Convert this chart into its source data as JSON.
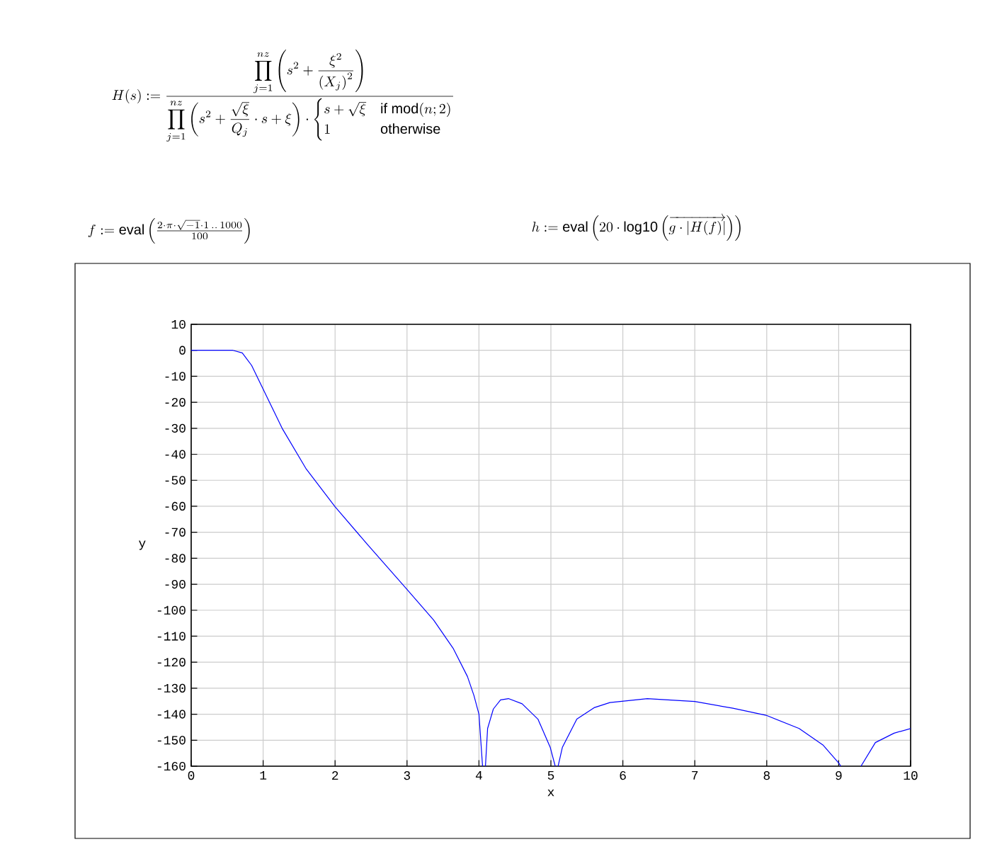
{
  "chart_data": {
    "type": "line",
    "xlabel": "x",
    "ylabel": "y",
    "x": [
      0,
      0.3,
      0.58,
      0.71,
      0.84,
      1.0,
      1.27,
      1.6,
      2.0,
      2.45,
      3.0,
      3.37,
      3.64,
      3.84,
      3.93,
      4.0,
      4.05,
      4.07,
      4.09,
      4.12,
      4.2,
      4.3,
      4.41,
      4.6,
      4.82,
      4.99,
      5.06,
      5.08,
      5.1,
      5.16,
      5.36,
      5.6,
      5.82,
      6.34,
      7.0,
      7.53,
      7.99,
      8.45,
      8.78,
      9.01,
      9.03,
      9.2,
      9.31,
      9.51,
      9.77,
      10
    ],
    "series": [
      {
        "color": "#0000ff",
        "values": [
          0,
          0,
          0,
          -1,
          -5.8,
          -14.9,
          -30.3,
          -45.7,
          -60.2,
          -74.7,
          -92,
          -103.8,
          -114.6,
          -125.5,
          -132.8,
          -140,
          -160,
          null,
          -160,
          -145.5,
          -138,
          -134.5,
          -134,
          -136,
          -141.9,
          -152.7,
          -160,
          null,
          -160,
          -152.7,
          -141.9,
          -137.5,
          -135.5,
          -134,
          -135.1,
          -137.7,
          -140.4,
          -145.5,
          -151.8,
          -159.1,
          -160,
          null,
          -160,
          -150.9,
          -147.3,
          -145.5
        ]
      }
    ],
    "xlim": [
      0,
      10
    ],
    "ylim": [
      -160,
      10
    ],
    "xticks": [
      0,
      1,
      2,
      3,
      4,
      5,
      6,
      7,
      8,
      9,
      10
    ],
    "yticks": [
      10,
      0,
      -10,
      -20,
      -30,
      -40,
      -50,
      -60,
      -70,
      -80,
      -90,
      -100,
      -110,
      -120,
      -130,
      -140,
      -150,
      -160
    ],
    "grid": true,
    "annotations": [
      "H(s):=\\dfrac{\\displaystyle\\prod_{j=1}^{nz}\\left(s^{2}+\\frac{\\xi^{2}}{\\left(X_{j}\\right)^{2}}\\right)}{\\displaystyle\\prod_{j=1}^{nz}\\left(s^{2}+\\frac{\\sqrt{\\xi}}{Q_{j}}\\cdot s+\\xi\\right)\\cdot\\begin{cases}s+\\sqrt{\\xi} & \\mathrm{if}\\ \\mathrm{mod}(n;2)\\\\ 1 & \\mathrm{otherwise}\\end{cases}}",
      "f:=\\mathrm{eval}\\left(\\frac{2\\cdot\\pi\\cdot\\sqrt{-1}\\cdot 1\\,..\\,1000}{100}\\right)",
      "h:=\\mathrm{eval}\\left(20\\cdot\\mathrm{log10}\\left(\\overrightarrow{g\\cdot\\left|H(f)\\right|}\\right)\\right)"
    ]
  }
}
